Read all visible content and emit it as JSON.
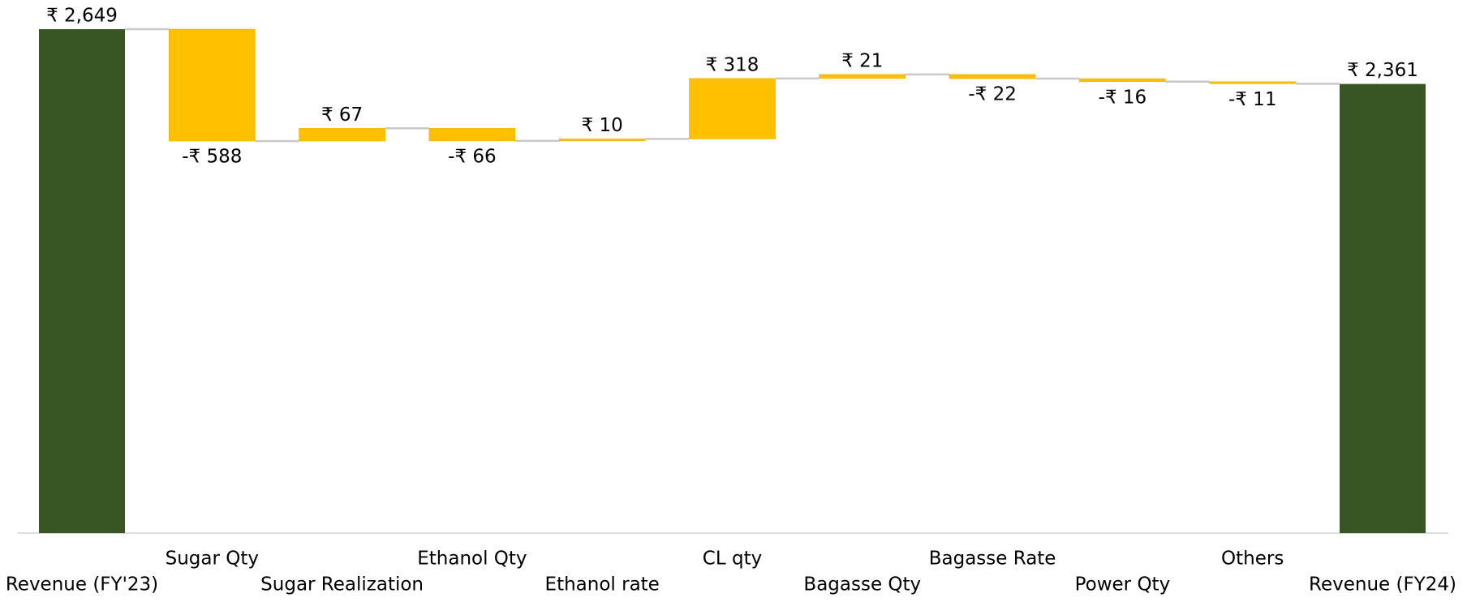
{
  "chart_data": {
    "type": "waterfall",
    "categories": [
      "Revenue (FY'23)",
      "Sugar Qty",
      "Sugar Realization",
      "Ethanol Qty",
      "Ethanol rate",
      "CL qty",
      "Bagasse Qty",
      "Bagasse Rate",
      "Power Qty",
      "Others",
      "Revenue (FY24)"
    ],
    "values": [
      2649,
      -588,
      67,
      -66,
      10,
      318,
      21,
      -22,
      -16,
      -11,
      2361
    ],
    "value_labels": [
      "₹ 2,649",
      "-₹ 588",
      "₹ 67",
      "-₹ 66",
      "₹ 10",
      "₹ 318",
      "₹ 21",
      "-₹ 22",
      "-₹ 16",
      "-₹ 11",
      "₹ 2,361"
    ],
    "totals": [
      0,
      10
    ],
    "total_color": "#375623",
    "color": "#ffc000",
    "ylim": [
      0,
      2649
    ]
  }
}
